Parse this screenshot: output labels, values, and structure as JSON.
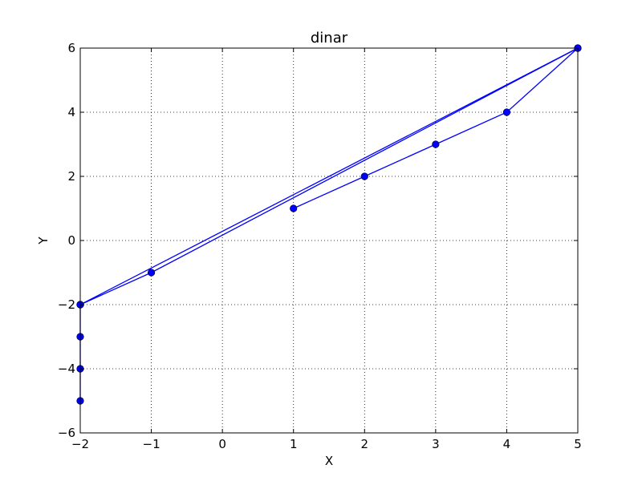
{
  "chart_data": {
    "type": "line",
    "title": "dinar",
    "xlabel": "X",
    "ylabel": "Y",
    "xlim": [
      -2,
      5
    ],
    "ylim": [
      -6,
      6
    ],
    "xticks": [
      -2,
      -1,
      0,
      1,
      2,
      3,
      4,
      5
    ],
    "yticks": [
      -6,
      -4,
      -2,
      0,
      2,
      4,
      6
    ],
    "xtick_labels": [
      "−2",
      "−1",
      "0",
      "1",
      "2",
      "3",
      "4",
      "5"
    ],
    "ytick_labels": [
      "−6",
      "−4",
      "−2",
      "0",
      "2",
      "4",
      "6"
    ],
    "grid": true,
    "grid_style": "dotted",
    "series": [
      {
        "color": "#0000ff",
        "marker": "circle",
        "points": [
          {
            "x": 1,
            "y": 1
          },
          {
            "x": 2,
            "y": 2
          },
          {
            "x": 3,
            "y": 3
          },
          {
            "x": 4,
            "y": 4
          },
          {
            "x": 5,
            "y": 6
          },
          {
            "x": -2,
            "y": -2
          },
          {
            "x": -2,
            "y": -3
          },
          {
            "x": -2,
            "y": -4
          },
          {
            "x": -2,
            "y": -5
          }
        ]
      },
      {
        "color": "#0000ff",
        "marker": "circle",
        "points": [
          {
            "x": 5,
            "y": 6
          },
          {
            "x": -1,
            "y": -1
          },
          {
            "x": -2,
            "y": -2
          }
        ]
      }
    ]
  }
}
